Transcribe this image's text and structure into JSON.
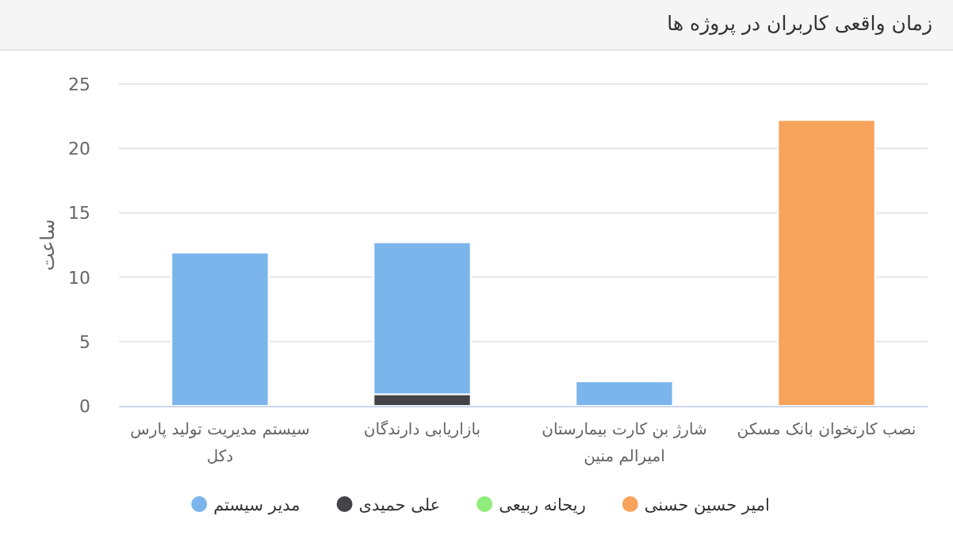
{
  "chart_data": {
    "type": "bar",
    "stacked": true,
    "title": "زمان واقعی کاربران در پروژه ها",
    "ylabel": "ساعت",
    "categories": [
      "سیستم مدیریت تولید پارس دکل",
      "بازاریابی دارندگان",
      "شارژ بن کارت بیمارستان امیرالم منین",
      "نصب کارتخوان بانک مسکن"
    ],
    "series": [
      {
        "name": "امیر حسین حسنی",
        "color": "#f7a35c",
        "values": [
          null,
          null,
          null,
          22.2
        ]
      },
      {
        "name": "ریحانه ربیعی",
        "color": "#90ed7d",
        "values": [
          null,
          null,
          null,
          null
        ]
      },
      {
        "name": "علی حمیدی",
        "color": "#434348",
        "values": [
          null,
          0.9,
          null,
          null
        ]
      },
      {
        "name": "مدیر سیستم",
        "color": "#7cb5ec",
        "values": [
          11.9,
          11.8,
          1.9,
          null
        ]
      }
    ],
    "ylim": [
      0,
      25
    ],
    "yticks": [
      0,
      5,
      10,
      15,
      20,
      25
    ],
    "grid": "y",
    "legend": "bottom"
  }
}
